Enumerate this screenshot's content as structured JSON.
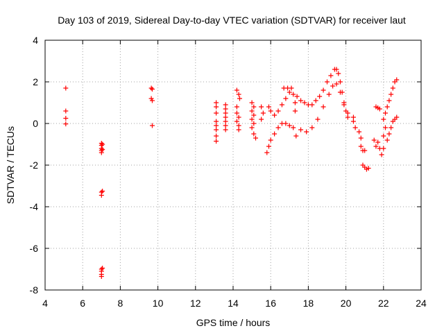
{
  "chart_data": {
    "type": "scatter",
    "title": "Day 103 of 2019, Sidereal Day-to-day VTEC variation (SDTVAR) for receiver laut",
    "xlabel": "GPS time / hours",
    "ylabel": "SDTVAR / TECUs",
    "xlim": [
      4,
      24
    ],
    "ylim": [
      -8,
      4
    ],
    "xticks": [
      4,
      6,
      8,
      10,
      12,
      14,
      16,
      18,
      20,
      22,
      24
    ],
    "yticks": [
      -8,
      -6,
      -4,
      -2,
      0,
      2,
      4
    ],
    "grid": true,
    "marker": "+",
    "color": "#ff0000",
    "series": [
      {
        "name": "SDTVAR",
        "points": [
          [
            5.1,
            1.7
          ],
          [
            5.1,
            0.6
          ],
          [
            5.1,
            0.25
          ],
          [
            5.1,
            -0.02
          ],
          [
            7.0,
            -0.95
          ],
          [
            7.0,
            -1.05
          ],
          [
            7.0,
            -1.2
          ],
          [
            7.0,
            -1.3
          ],
          [
            7.0,
            -1.4
          ],
          [
            7.05,
            -1.0
          ],
          [
            7.05,
            -1.25
          ],
          [
            7.0,
            -3.3
          ],
          [
            7.0,
            -3.45
          ],
          [
            7.05,
            -3.25
          ],
          [
            7.0,
            -7.0
          ],
          [
            7.0,
            -7.1
          ],
          [
            7.0,
            -7.25
          ],
          [
            7.0,
            -7.35
          ],
          [
            7.05,
            -6.95
          ],
          [
            9.65,
            1.7
          ],
          [
            9.7,
            1.65
          ],
          [
            9.65,
            1.2
          ],
          [
            9.7,
            1.1
          ],
          [
            9.7,
            -0.1
          ],
          [
            13.1,
            1.0
          ],
          [
            13.1,
            0.8
          ],
          [
            13.1,
            0.5
          ],
          [
            13.1,
            0.1
          ],
          [
            13.1,
            -0.1
          ],
          [
            13.1,
            -0.3
          ],
          [
            13.1,
            -0.6
          ],
          [
            13.1,
            -0.85
          ],
          [
            13.6,
            0.9
          ],
          [
            13.6,
            0.7
          ],
          [
            13.6,
            0.5
          ],
          [
            13.6,
            0.3
          ],
          [
            13.6,
            0.1
          ],
          [
            13.6,
            -0.1
          ],
          [
            13.6,
            -0.3
          ],
          [
            14.2,
            1.6
          ],
          [
            14.3,
            1.4
          ],
          [
            14.35,
            1.2
          ],
          [
            14.2,
            0.8
          ],
          [
            14.2,
            0.5
          ],
          [
            14.3,
            0.3
          ],
          [
            14.2,
            0.1
          ],
          [
            14.3,
            -0.1
          ],
          [
            14.3,
            -0.3
          ],
          [
            15.0,
            1.0
          ],
          [
            15.1,
            0.8
          ],
          [
            15.0,
            0.6
          ],
          [
            15.1,
            0.4
          ],
          [
            15.0,
            0.2
          ],
          [
            15.1,
            0.0
          ],
          [
            15.0,
            -0.2
          ],
          [
            15.1,
            -0.5
          ],
          [
            15.2,
            -0.7
          ],
          [
            15.5,
            0.8
          ],
          [
            15.6,
            0.5
          ],
          [
            15.5,
            0.2
          ],
          [
            15.8,
            -1.4
          ],
          [
            15.9,
            -1.1
          ],
          [
            16.0,
            -0.8
          ],
          [
            16.2,
            -0.5
          ],
          [
            16.4,
            -0.2
          ],
          [
            16.6,
            0.0
          ],
          [
            16.8,
            0.0
          ],
          [
            17.0,
            -0.1
          ],
          [
            17.2,
            -0.2
          ],
          [
            17.35,
            -0.6
          ],
          [
            15.9,
            0.8
          ],
          [
            16.0,
            0.6
          ],
          [
            16.2,
            0.4
          ],
          [
            16.4,
            0.6
          ],
          [
            16.6,
            0.9
          ],
          [
            16.8,
            1.2
          ],
          [
            17.0,
            1.5
          ],
          [
            17.2,
            1.4
          ],
          [
            17.4,
            1.3
          ],
          [
            17.6,
            1.1
          ],
          [
            17.8,
            1.0
          ],
          [
            18.0,
            0.9
          ],
          [
            18.2,
            0.9
          ],
          [
            18.4,
            1.1
          ],
          [
            18.6,
            1.3
          ],
          [
            18.8,
            1.6
          ],
          [
            19.0,
            2.0
          ],
          [
            19.2,
            2.3
          ],
          [
            19.4,
            2.6
          ],
          [
            19.5,
            2.6
          ],
          [
            19.6,
            2.4
          ],
          [
            19.7,
            2.0
          ],
          [
            19.8,
            1.5
          ],
          [
            19.9,
            1.0
          ],
          [
            20.0,
            0.6
          ],
          [
            20.1,
            0.3
          ],
          [
            16.7,
            1.7
          ],
          [
            16.9,
            1.7
          ],
          [
            17.1,
            1.7
          ],
          [
            17.3,
            1.0
          ],
          [
            17.3,
            0.6
          ],
          [
            17.6,
            -0.3
          ],
          [
            17.9,
            -0.4
          ],
          [
            18.2,
            -0.2
          ],
          [
            18.5,
            0.2
          ],
          [
            18.8,
            0.8
          ],
          [
            19.1,
            1.4
          ],
          [
            19.3,
            1.8
          ],
          [
            19.5,
            1.9
          ],
          [
            19.7,
            1.5
          ],
          [
            19.9,
            0.9
          ],
          [
            20.1,
            0.5
          ],
          [
            20.4,
            0.3
          ],
          [
            20.4,
            0.1
          ],
          [
            20.5,
            -0.2
          ],
          [
            20.7,
            -0.4
          ],
          [
            20.8,
            -0.7
          ],
          [
            20.8,
            -1.1
          ],
          [
            20.9,
            -1.3
          ],
          [
            21.0,
            -1.3
          ],
          [
            20.9,
            -2.0
          ],
          [
            21.0,
            -2.1
          ],
          [
            21.1,
            -2.2
          ],
          [
            21.2,
            -2.15
          ],
          [
            21.6,
            0.8
          ],
          [
            21.7,
            0.75
          ],
          [
            21.8,
            0.7
          ],
          [
            21.5,
            -0.8
          ],
          [
            21.6,
            -1.1
          ],
          [
            21.7,
            -0.9
          ],
          [
            21.8,
            -1.2
          ],
          [
            21.9,
            -1.5
          ],
          [
            22.0,
            -1.2
          ],
          [
            22.0,
            -0.6
          ],
          [
            22.1,
            -0.2
          ],
          [
            22.0,
            0.2
          ],
          [
            22.1,
            0.5
          ],
          [
            22.2,
            0.8
          ],
          [
            22.3,
            1.1
          ],
          [
            22.4,
            1.4
          ],
          [
            22.5,
            1.7
          ],
          [
            22.6,
            2.0
          ],
          [
            22.7,
            2.1
          ],
          [
            22.2,
            -0.8
          ],
          [
            22.3,
            -0.5
          ],
          [
            22.4,
            -0.2
          ],
          [
            22.5,
            0.1
          ],
          [
            22.6,
            0.2
          ],
          [
            22.7,
            0.3
          ]
        ]
      }
    ]
  }
}
